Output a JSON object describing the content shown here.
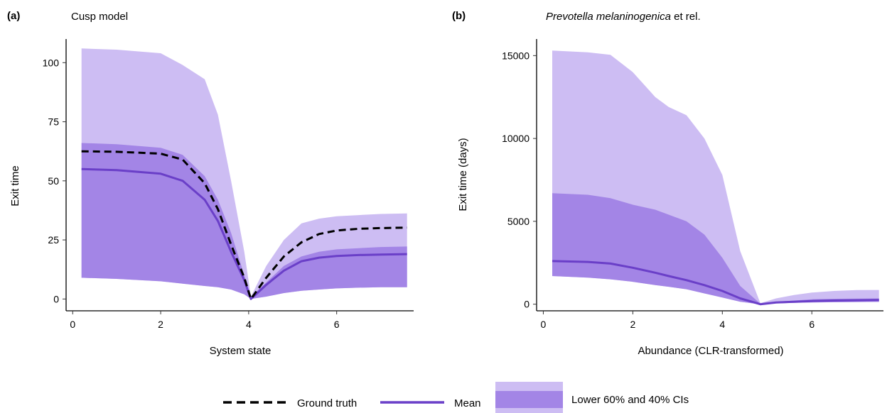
{
  "panels": [
    {
      "tag": "(a)",
      "title": "Cusp model",
      "xlabel": "System state",
      "ylabel": "Exit time",
      "xlim": [
        -0.15,
        7.75
      ],
      "ylim": [
        -5,
        110
      ],
      "xticks": [
        0,
        2,
        4,
        6
      ],
      "yticks": [
        0,
        25,
        50,
        75,
        100
      ],
      "x": [
        0.2,
        1.0,
        2.0,
        2.5,
        3.0,
        3.3,
        3.6,
        3.9,
        4.05,
        4.4,
        4.8,
        5.2,
        5.6,
        6.0,
        6.5,
        7.0,
        7.6
      ],
      "upper60": [
        106,
        105.5,
        104,
        99,
        93,
        78,
        50,
        20,
        1,
        14,
        25,
        32,
        34,
        35,
        35.5,
        36,
        36.2
      ],
      "upper40": [
        66,
        65.5,
        64,
        61,
        52,
        42,
        28,
        10,
        1,
        7,
        14,
        18,
        20,
        21,
        21.5,
        22,
        22.2
      ],
      "lower": [
        9,
        8.5,
        7.5,
        6.5,
        5.5,
        5,
        4,
        2,
        0,
        1,
        2.5,
        3.5,
        4,
        4.5,
        4.8,
        5,
        5
      ],
      "mean": [
        55,
        54.5,
        53,
        50,
        42,
        33,
        20,
        8,
        0,
        6,
        12,
        16,
        17.5,
        18.2,
        18.6,
        18.8,
        19
      ],
      "truth": [
        62.5,
        62.3,
        61.5,
        59,
        49,
        38,
        23,
        9,
        0,
        9,
        18,
        24,
        27.5,
        29,
        29.7,
        30,
        30.2
      ]
    },
    {
      "tag": "(b)",
      "title_italic": "Prevotella melaninogenica",
      "title_rest": " et rel.",
      "xlabel": "Abundance (CLR-transformed)",
      "ylabel": "Exit time (days)",
      "xlim": [
        -0.15,
        7.6
      ],
      "ylim": [
        -400,
        16000
      ],
      "xticks": [
        0,
        2,
        4,
        6
      ],
      "yticks": [
        0,
        5000,
        10000,
        15000
      ],
      "x": [
        0.2,
        1.0,
        1.5,
        2.0,
        2.5,
        2.8,
        3.2,
        3.6,
        4.0,
        4.4,
        4.85,
        5.2,
        5.6,
        6.0,
        6.5,
        7.0,
        7.5
      ],
      "upper60": [
        15300,
        15200,
        15050,
        14000,
        12500,
        11900,
        11400,
        10000,
        7800,
        3200,
        60,
        350,
        550,
        700,
        800,
        850,
        860
      ],
      "upper40": [
        6700,
        6600,
        6400,
        6000,
        5700,
        5400,
        5000,
        4200,
        2800,
        1100,
        30,
        150,
        220,
        300,
        330,
        340,
        350
      ],
      "lower": [
        1700,
        1600,
        1500,
        1350,
        1150,
        1050,
        900,
        650,
        400,
        150,
        0,
        50,
        80,
        100,
        120,
        130,
        140
      ],
      "mean": [
        2600,
        2550,
        2450,
        2200,
        1900,
        1700,
        1450,
        1150,
        800,
        350,
        0,
        100,
        150,
        190,
        220,
        240,
        250
      ]
    }
  ],
  "legend": {
    "truth_label": "Ground truth",
    "mean_label": "Mean",
    "ci_label": "Lower 60% and 40% CIs"
  },
  "colors": {
    "ci60": "#cdbdf3",
    "ci40": "#a385e6",
    "mean": "#6a3fc8",
    "truth": "#000000"
  }
}
